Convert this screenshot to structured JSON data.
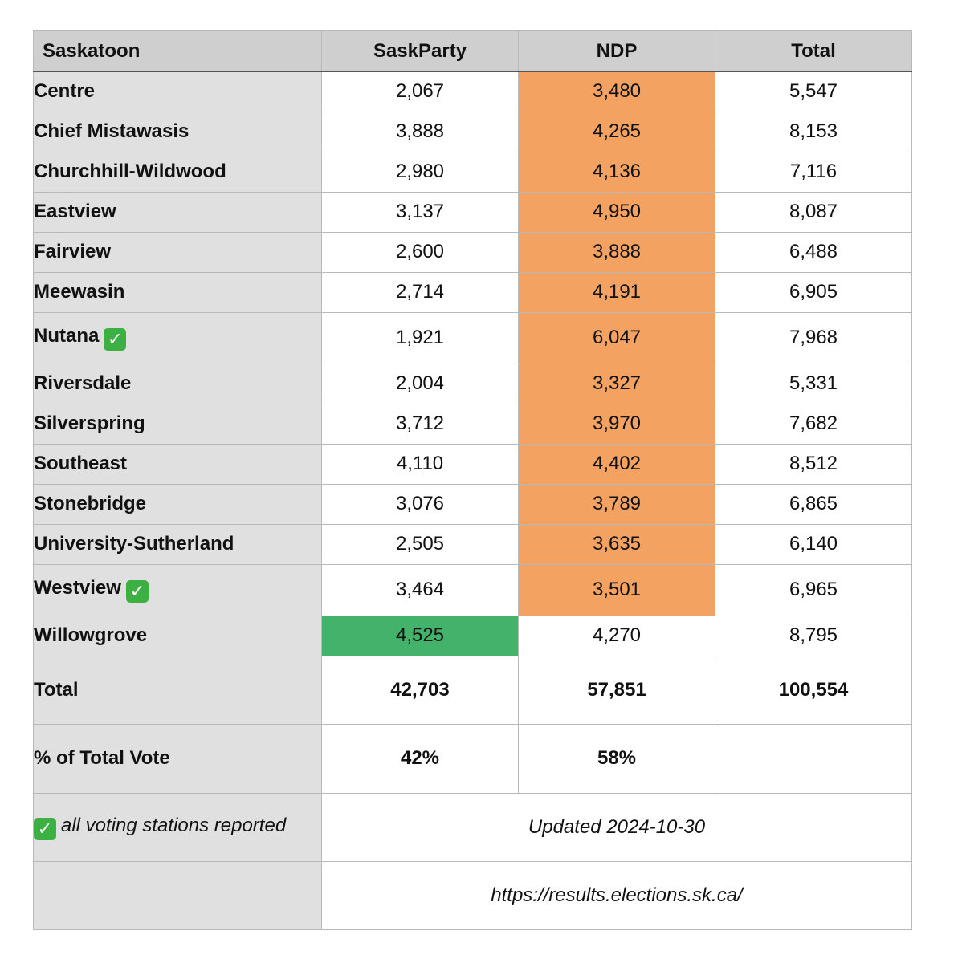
{
  "header": {
    "region": "Saskatoon",
    "col1": "SaskParty",
    "col2": "NDP",
    "col3": "Total"
  },
  "rows": [
    {
      "name": "Centre",
      "sask": "2,067",
      "ndp": "3,480",
      "total": "5,547"
    },
    {
      "name": "Chief Mistawasis",
      "sask": "3,888",
      "ndp": "4,265",
      "total": "8,153"
    },
    {
      "name": "Churchhill-Wildwood",
      "sask": "2,980",
      "ndp": "4,136",
      "total": "7,116"
    },
    {
      "name": "Eastview",
      "sask": "3,137",
      "ndp": "4,950",
      "total": "8,087"
    },
    {
      "name": "Fairview",
      "sask": "2,600",
      "ndp": "3,888",
      "total": "6,488"
    },
    {
      "name": "Meewasin",
      "sask": "2,714",
      "ndp": "4,191",
      "total": "6,905"
    },
    {
      "name": "Nutana",
      "sask": "1,921",
      "ndp": "6,047",
      "total": "7,968"
    },
    {
      "name": "Riversdale",
      "sask": "2,004",
      "ndp": "3,327",
      "total": "5,331"
    },
    {
      "name": "Silverspring",
      "sask": "3,712",
      "ndp": "3,970",
      "total": "7,682"
    },
    {
      "name": "Southeast",
      "sask": "4,110",
      "ndp": "4,402",
      "total": "8,512"
    },
    {
      "name": "Stonebridge",
      "sask": "3,076",
      "ndp": "3,789",
      "total": "6,865"
    },
    {
      "name": "University-Sutherland",
      "sask": "2,505",
      "ndp": "3,635",
      "total": "6,140"
    },
    {
      "name": "Westview",
      "sask": "3,464",
      "ndp": "3,501",
      "total": "6,965"
    },
    {
      "name": "Willowgrove",
      "sask": "4,525",
      "ndp": "4,270",
      "total": "8,795"
    }
  ],
  "totals": {
    "label": "Total",
    "sask": "42,703",
    "ndp": "57,851",
    "total": "100,554"
  },
  "percent": {
    "label": "% of Total Vote",
    "sask": "42%",
    "ndp": "58%",
    "total": ""
  },
  "footer": {
    "note": "all voting stations reported",
    "updated": "Updated 2024-10-30",
    "source": "https://results.elections.sk.ca/"
  },
  "colors": {
    "ndp_win": "#f4a262",
    "saskparty_win": "#43b36b",
    "label_bg": "#e0e0e0",
    "header_bg": "#cfcfcf"
  },
  "icons": {
    "reported": "check-mark-icon"
  }
}
